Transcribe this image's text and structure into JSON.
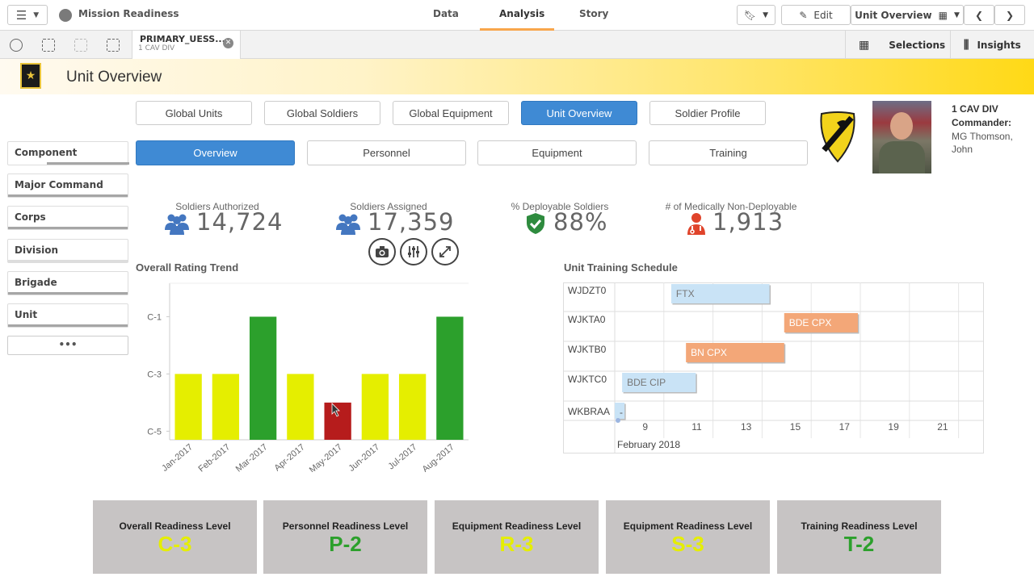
{
  "app": {
    "title": "Mission Readiness"
  },
  "nav": {
    "tabs": [
      "Data",
      "Analysis",
      "Story"
    ],
    "active": "Analysis"
  },
  "toolbar": {
    "edit_label": "Edit",
    "sheet_label": "Unit Overview",
    "selections_label": "Selections",
    "insights_label": "Insights"
  },
  "selection": {
    "field": "PRIMARY_UESS...",
    "value": "1 CAV DIV"
  },
  "page": {
    "title": "Unit Overview"
  },
  "main_tabs": [
    "Global Units",
    "Global Soldiers",
    "Global Equipment",
    "Unit Overview",
    "Soldier Profile"
  ],
  "main_tabs_active": 3,
  "sub_tabs": [
    "Overview",
    "Personnel",
    "Equipment",
    "Training"
  ],
  "sub_tabs_active": 0,
  "filters": [
    "Component",
    "Major Command",
    "Corps",
    "Division",
    "Brigade",
    "Unit"
  ],
  "more_label": "•••",
  "kpis": [
    {
      "label": "Soldiers Authorized",
      "value": "14,724",
      "icon": "people-icon",
      "color": "#4477c0"
    },
    {
      "label": "Soldiers Assigned",
      "value": "17,359",
      "icon": "people-icon",
      "color": "#4477c0"
    },
    {
      "label": "% Deployable Soldiers",
      "value": "88%",
      "icon": "shield-check-icon",
      "color": "#2e8b3e"
    },
    {
      "label": "# of Medically Non-Deployable",
      "value": "1,913",
      "icon": "medic-icon",
      "color": "#e0442b"
    }
  ],
  "commander": {
    "unit": "1 CAV DIV",
    "label": "Commander:",
    "name_line1": "MG Thomson,",
    "name_line2": "John"
  },
  "chart_data": [
    {
      "type": "bar",
      "title": "Overall Rating Trend",
      "categories": [
        "Jan-2017",
        "Feb-2017",
        "Mar-2017",
        "Apr-2017",
        "May-2017",
        "Jun-2017",
        "Jul-2017",
        "Aug-2017"
      ],
      "values": [
        3,
        3,
        1,
        3,
        4,
        3,
        3,
        1
      ],
      "y_ticks": [
        "C-1",
        "C-3",
        "C-5"
      ],
      "ylim": [
        5.3,
        0
      ],
      "colors": [
        "#e5ee00",
        "#e5ee00",
        "#2ca02c",
        "#e5ee00",
        "#b61c1c",
        "#e5ee00",
        "#e5ee00",
        "#2ca02c"
      ],
      "xlabel": "",
      "ylabel": ""
    },
    {
      "type": "gantt",
      "title": "Unit Training Schedule",
      "rows": [
        "WJDZT0",
        "WJKTA0",
        "WJKTB0",
        "WJKTC0",
        "WKBRAA"
      ],
      "tasks": [
        {
          "row": "WJDZT0",
          "label": "FTX",
          "start": 10.3,
          "end": 14.3,
          "color": "#c9e3f6",
          "text_color": "#777777"
        },
        {
          "row": "WJKTA0",
          "label": "BDE CPX",
          "start": 14.9,
          "end": 17.9,
          "color": "#f3a778",
          "text_color": "#ffffff"
        },
        {
          "row": "WJKTB0",
          "label": "BN CPX",
          "start": 10.9,
          "end": 14.9,
          "color": "#f3a778",
          "text_color": "#ffffff"
        },
        {
          "row": "WJKTC0",
          "label": "BDE CIP",
          "start": 8.3,
          "end": 11.3,
          "color": "#c9e3f6",
          "text_color": "#777777"
        },
        {
          "row": "WKBRAA",
          "label": "-",
          "start": 8.0,
          "end": 8.4,
          "color": "#c9e3f6",
          "text_color": "#555555"
        }
      ],
      "x_ticks": [
        "9",
        "11",
        "13",
        "15",
        "17",
        "19",
        "21"
      ],
      "xlim": [
        8,
        23
      ],
      "x_label": "February 2018"
    }
  ],
  "readiness": [
    {
      "label": "Overall Readiness Level",
      "value": "C-3",
      "color": "#e5ee00"
    },
    {
      "label": "Personnel Readiness Level",
      "value": "P-2",
      "color": "#2ca02c"
    },
    {
      "label": "Equipment Readiness Level",
      "value": "R-3",
      "color": "#e5ee00"
    },
    {
      "label": "Equipment Readiness Level",
      "value": "S-3",
      "color": "#e5ee00"
    },
    {
      "label": "Training Readiness Level",
      "value": "T-2",
      "color": "#2ca02c"
    }
  ]
}
